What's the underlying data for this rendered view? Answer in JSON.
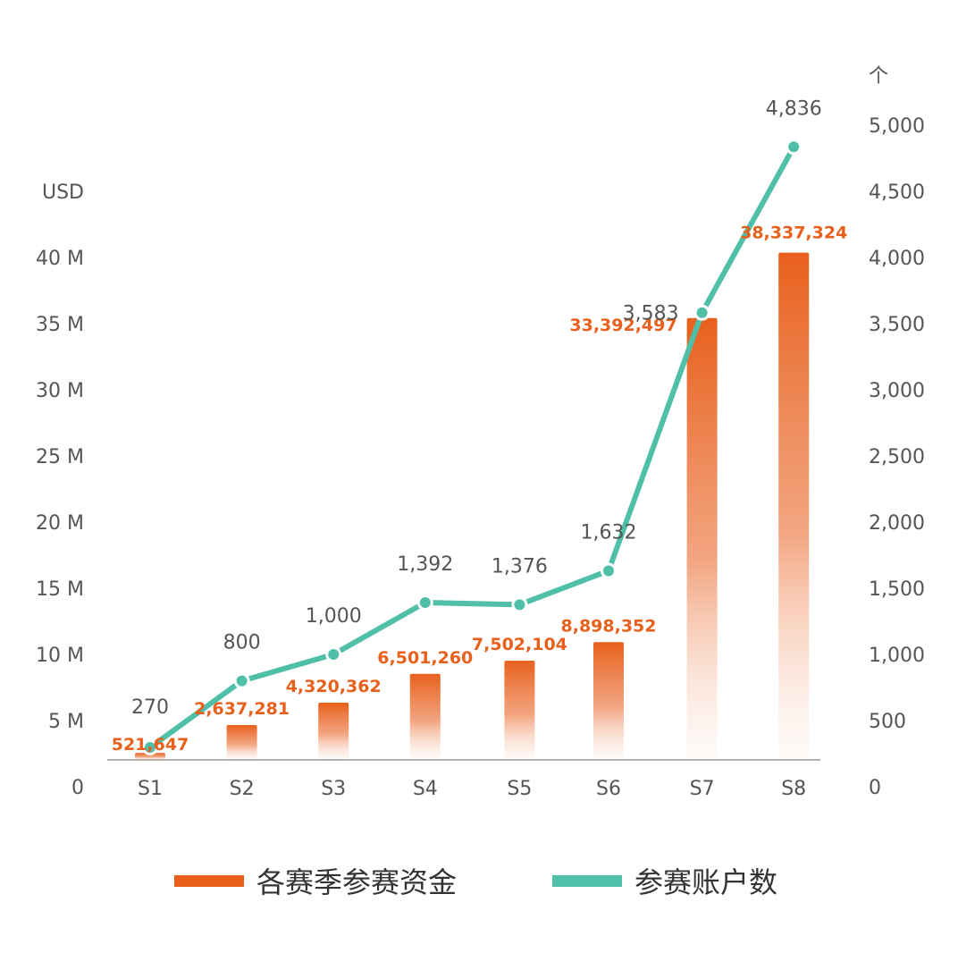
{
  "chart_data": {
    "type": "bar",
    "categories": [
      "S1",
      "S2",
      "S3",
      "S4",
      "S5",
      "S6",
      "S7",
      "S8"
    ],
    "series": [
      {
        "name": "各赛季参赛资金",
        "type": "bar",
        "axis": "left",
        "color": "#e8601c",
        "values": [
          521647,
          2637281,
          4320362,
          6501260,
          7502104,
          8898352,
          33392497,
          38337324
        ],
        "labels": [
          "521,647",
          "2,637,281",
          "4,320,362",
          "6,501,260",
          "7,502,104",
          "8,898,352",
          "33,392,497",
          "38,337,324"
        ]
      },
      {
        "name": "参赛账户数",
        "type": "line",
        "axis": "right",
        "color": "#4fbfa8",
        "values": [
          270,
          800,
          1000,
          1392,
          1376,
          1632,
          3583,
          4836
        ],
        "labels": [
          "270",
          "800",
          "1,000",
          "1,392",
          "1,376",
          "1,632",
          "3,583",
          "4,836"
        ]
      }
    ],
    "left_axis": {
      "unit": "USD",
      "ylim": [
        0,
        45000000
      ],
      "ticks": [
        0,
        5000000,
        10000000,
        15000000,
        20000000,
        25000000,
        30000000,
        35000000,
        40000000
      ],
      "tick_labels": [
        "0",
        "5 M",
        "10 M",
        "15 M",
        "20 M",
        "25 M",
        "30 M",
        "35 M",
        "40 M"
      ]
    },
    "right_axis": {
      "unit": "个",
      "ylim": [
        0,
        5000
      ],
      "ticks": [
        0,
        500,
        1000,
        1500,
        2000,
        2500,
        3000,
        3500,
        4000,
        4500,
        5000
      ],
      "tick_labels": [
        "0",
        "500",
        "1,000",
        "1,500",
        "2,000",
        "2,500",
        "3,000",
        "3,500",
        "4,000",
        "4,500",
        "5,000"
      ]
    },
    "grid": false,
    "legend_position": "bottom"
  }
}
